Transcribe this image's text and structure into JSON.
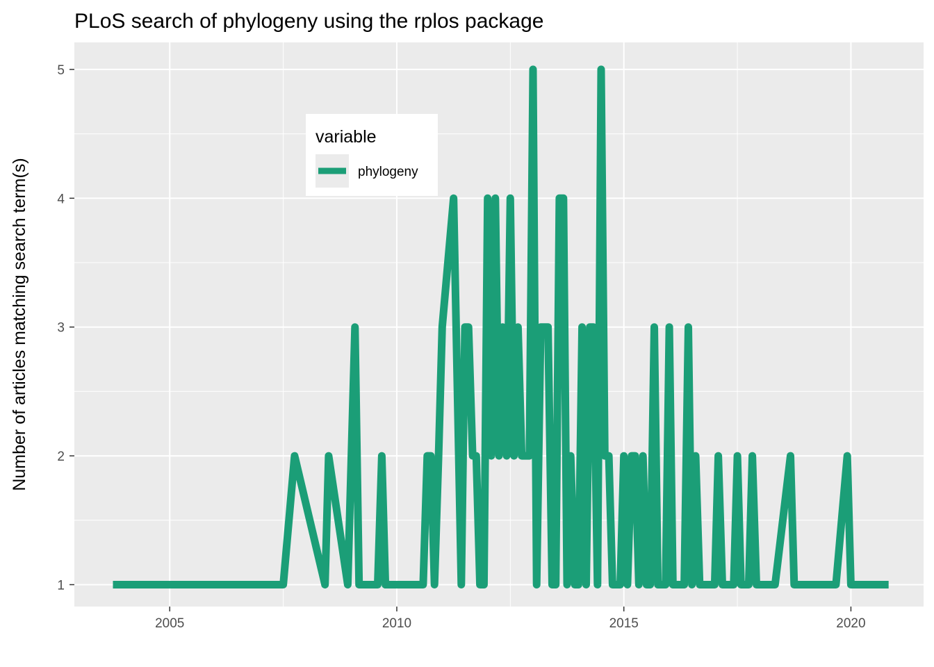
{
  "chart_data": {
    "type": "line",
    "title": "PLoS search of phylogeny using the rplos package",
    "xlabel": "",
    "ylabel": "Number of articles matching search term(s)",
    "xlim": [
      2002.9,
      2021.6
    ],
    "ylim": [
      0.83,
      5.21
    ],
    "x_ticks": [
      2005,
      2010,
      2015,
      2020
    ],
    "y_ticks": [
      1,
      2,
      3,
      4,
      5
    ],
    "grid": true,
    "legend": {
      "title": "variable",
      "position": "inside-top-left"
    },
    "series": [
      {
        "name": "phylogeny",
        "color": "#1b9e77",
        "x": [
          2003.75,
          2007.5,
          2007.75,
          2008.42,
          2008.5,
          2008.92,
          2009.08,
          2009.17,
          2009.25,
          2009.58,
          2009.67,
          2009.75,
          2009.83,
          2010.58,
          2010.67,
          2010.75,
          2010.83,
          2010.92,
          2011.0,
          2011.25,
          2011.42,
          2011.5,
          2011.58,
          2011.67,
          2011.75,
          2011.83,
          2011.92,
          2012.0,
          2012.08,
          2012.17,
          2012.25,
          2012.33,
          2012.42,
          2012.5,
          2012.58,
          2012.67,
          2012.75,
          2012.83,
          2012.92,
          2013.0,
          2013.08,
          2013.17,
          2013.25,
          2013.33,
          2013.42,
          2013.5,
          2013.58,
          2013.67,
          2013.75,
          2013.83,
          2013.92,
          2014.0,
          2014.08,
          2014.17,
          2014.25,
          2014.33,
          2014.42,
          2014.5,
          2014.58,
          2014.67,
          2014.75,
          2014.83,
          2014.92,
          2015.0,
          2015.08,
          2015.17,
          2015.25,
          2015.33,
          2015.42,
          2015.5,
          2015.58,
          2015.67,
          2015.75,
          2015.83,
          2015.92,
          2016.0,
          2016.08,
          2016.17,
          2016.25,
          2016.33,
          2016.42,
          2016.5,
          2016.58,
          2016.67,
          2016.75,
          2016.83,
          2016.92,
          2017.0,
          2017.08,
          2017.17,
          2017.25,
          2017.33,
          2017.42,
          2017.5,
          2017.58,
          2017.67,
          2017.75,
          2017.83,
          2017.92,
          2018.0,
          2018.33,
          2018.67,
          2018.75,
          2019.0,
          2019.5,
          2019.67,
          2019.92,
          2020.0,
          2020.83
        ],
        "y": [
          1,
          1,
          2,
          1,
          2,
          1,
          3,
          1,
          1,
          1,
          2,
          1,
          1,
          1,
          2,
          2,
          1,
          2,
          3,
          4,
          1,
          3,
          3,
          2,
          2,
          1,
          1,
          4,
          2,
          4,
          2,
          3,
          2,
          4,
          2,
          3,
          2,
          2,
          2,
          5,
          1,
          3,
          3,
          3,
          1,
          1,
          4,
          4,
          1,
          2,
          1,
          1,
          3,
          1,
          3,
          3,
          1,
          5,
          2,
          2,
          1,
          1,
          1,
          2,
          1,
          2,
          2,
          1,
          2,
          1,
          1,
          3,
          1,
          1,
          1,
          3,
          1,
          1,
          1,
          1,
          3,
          1,
          2,
          1,
          1,
          1,
          1,
          1,
          2,
          1,
          1,
          1,
          1,
          2,
          1,
          1,
          1,
          2,
          1,
          1,
          1,
          2,
          1,
          1,
          1,
          1,
          2,
          1,
          1
        ]
      }
    ]
  }
}
